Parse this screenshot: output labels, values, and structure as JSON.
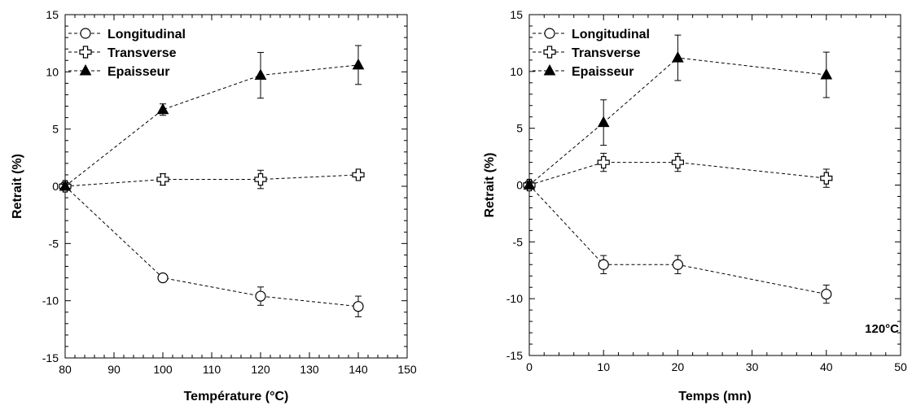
{
  "chart_data": [
    {
      "type": "line",
      "xlabel": "Température (°C)",
      "ylabel": "Retrait (%)",
      "xlim": [
        80,
        150
      ],
      "ylim": [
        -15,
        15
      ],
      "xticks": [
        80,
        90,
        100,
        110,
        120,
        130,
        140,
        150
      ],
      "yticks": [
        -15,
        -10,
        -5,
        0,
        5,
        10,
        15
      ],
      "legend_position": "top-left",
      "grid": false,
      "annotation": "",
      "series": [
        {
          "name": "Longitudinal",
          "marker": "circle-open",
          "x": [
            80,
            100,
            120,
            140
          ],
          "y": [
            0,
            -8.0,
            -9.6,
            -10.5
          ],
          "err": [
            0,
            0.3,
            0.8,
            0.9
          ]
        },
        {
          "name": "Transverse",
          "marker": "cross-open",
          "x": [
            80,
            100,
            120,
            140
          ],
          "y": [
            0,
            0.6,
            0.6,
            1.0
          ],
          "err": [
            0,
            0.5,
            0.8,
            0.2
          ]
        },
        {
          "name": "Epaisseur",
          "marker": "triangle-filled",
          "x": [
            80,
            100,
            120,
            140
          ],
          "y": [
            0,
            6.7,
            9.7,
            10.6
          ],
          "err": [
            0,
            0.5,
            2.0,
            1.7
          ]
        }
      ]
    },
    {
      "type": "line",
      "xlabel": "Temps (mn)",
      "ylabel": "Retrait (%)",
      "xlim": [
        0,
        50
      ],
      "ylim": [
        -15,
        15
      ],
      "xticks": [
        0,
        10,
        20,
        30,
        40,
        50
      ],
      "yticks": [
        -15,
        -10,
        -5,
        0,
        5,
        10,
        15
      ],
      "legend_position": "top-left",
      "grid": false,
      "annotation": "120°C",
      "series": [
        {
          "name": "Longitudinal",
          "marker": "circle-open",
          "x": [
            0,
            10,
            20,
            40
          ],
          "y": [
            0,
            -7.0,
            -7.0,
            -9.6
          ],
          "err": [
            0,
            0.8,
            0.8,
            0.8
          ]
        },
        {
          "name": "Transverse",
          "marker": "cross-open",
          "x": [
            0,
            10,
            20,
            40
          ],
          "y": [
            0,
            2.0,
            2.0,
            0.6
          ],
          "err": [
            0,
            0.8,
            0.8,
            0.8
          ]
        },
        {
          "name": "Epaisseur",
          "marker": "triangle-filled",
          "x": [
            0,
            10,
            20,
            40
          ],
          "y": [
            0,
            5.5,
            11.2,
            9.7
          ],
          "err": [
            0,
            2.0,
            2.0,
            2.0
          ]
        }
      ]
    }
  ]
}
